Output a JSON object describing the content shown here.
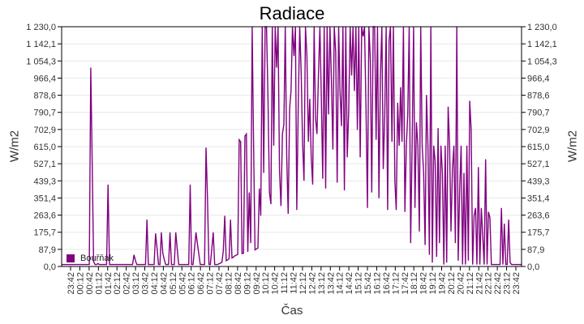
{
  "chart_data": {
    "type": "line",
    "title": "Radiace",
    "xlabel": "Čas",
    "ylabel": "W/m2",
    "ylabel_right": "W/m2",
    "ylim": [
      0,
      1230.0
    ],
    "y_ticks": [
      "0,0",
      "87,9",
      "175,7",
      "263,6",
      "351,4",
      "439,3",
      "527,1",
      "615,0",
      "702,9",
      "790,7",
      "878,6",
      "966,4",
      "1 054,3",
      "1 142,1",
      "1 230,0"
    ],
    "x_ticks": [
      "23:42",
      "00:12",
      "00:42",
      "01:12",
      "01:42",
      "02:12",
      "02:42",
      "03:12",
      "03:42",
      "04:12",
      "04:42",
      "05:12",
      "05:42",
      "06:12",
      "06:42",
      "07:12",
      "07:42",
      "08:12",
      "08:42",
      "09:12",
      "09:42",
      "10:12",
      "10:42",
      "11:12",
      "11:42",
      "12:12",
      "12:42",
      "13:12",
      "13:42",
      "14:12",
      "14:42",
      "15:12",
      "15:42",
      "16:12",
      "16:42",
      "17:12",
      "17:42",
      "18:12",
      "18:42",
      "19:12",
      "19:42",
      "20:12",
      "20:42",
      "21:12",
      "21:42",
      "22:12",
      "22:42",
      "23:12",
      "23:42"
    ],
    "grid": true,
    "legend_position": "bottom-left inside",
    "series": [
      {
        "name": "Bouřňák",
        "color": "#800080",
        "baseline_description": "Baseline ~10 W/m2 overnight, smooth clear-sky envelope rising from ~07:00, peaking ~439 W/m2 near 12:42, falling to ~10 by ~20:30; dense spikes above envelope up to 1230 (clipped) between 08:00 and 20:00, sporadic spikes at night (e.g. ~1020 at 01:42).",
        "sample_interval_min": 10,
        "start": "23:42",
        "values": [
          10,
          10,
          10,
          10,
          10,
          10,
          10,
          10,
          10,
          10,
          10,
          10,
          10,
          10,
          1020,
          520,
          25,
          10,
          10,
          15,
          10,
          10,
          10,
          10,
          10,
          10,
          420,
          10,
          10,
          10,
          10,
          10,
          10,
          10,
          10,
          10,
          10,
          10,
          10,
          10,
          10,
          10,
          10,
          10,
          60,
          30,
          10,
          10,
          10,
          10,
          10,
          10,
          10,
          240,
          10,
          10,
          10,
          10,
          10,
          170,
          95,
          10,
          10,
          175,
          70,
          35,
          10,
          10,
          10,
          175,
          10,
          10,
          10,
          175,
          90,
          10,
          10,
          10,
          10,
          10,
          10,
          10,
          10,
          420,
          10,
          10,
          90,
          175,
          120,
          65,
          10,
          10,
          10,
          10,
          610,
          350,
          10,
          10,
          90,
          175,
          10,
          10,
          10,
          14,
          18,
          22,
          80,
          260,
          30,
          34,
          40,
          240,
          44,
          48,
          55,
          58,
          62,
          650,
          640,
          66,
          68,
          670,
          680,
          75,
          380,
          120,
          1230,
          640,
          85,
          90,
          95,
          400,
          260,
          1230,
          480,
          1230,
          1230,
          860,
          380,
          320,
          1230,
          620,
          1230,
          1020,
          1230,
          490,
          310,
          680,
          730,
          1230,
          560,
          270,
          810,
          900,
          1230,
          1080,
          1230,
          290,
          820,
          1230,
          1000,
          640,
          440,
          1230,
          1080,
          640,
          860,
          560,
          420,
          1230,
          760,
          680,
          980,
          1230,
          880,
          450,
          1230,
          400,
          1230,
          780,
          1230,
          960,
          600,
          1230,
          1100,
          430,
          1230,
          900,
          720,
          1230,
          390,
          1230,
          560,
          800,
          1230,
          980,
          1230,
          900,
          1230,
          700,
          1230,
          560,
          1230,
          1180,
          1230,
          820,
          300,
          1230,
          1060,
          380,
          1230,
          1230,
          650,
          1230,
          350,
          980,
          1230,
          500,
          770,
          1230,
          290,
          1160,
          1230,
          640,
          1230,
          440,
          290,
          840,
          620,
          920,
          640,
          1230,
          280,
          620,
          780,
          1230,
          120,
          620,
          1230,
          300,
          740,
          620,
          180,
          1230,
          620,
          480,
          110,
          880,
          620,
          60,
          1230,
          20,
          620,
          540,
          50,
          710,
          120,
          620,
          480,
          10,
          620,
          20,
          820,
          620,
          180,
          500,
          620,
          120,
          1230,
          30,
          390,
          620,
          10,
          480,
          10,
          620,
          30,
          850,
          700,
          10,
          260,
          300,
          10,
          510,
          10,
          300,
          160,
          10,
          550,
          10,
          280,
          250,
          10,
          10,
          10,
          10,
          10,
          10,
          10,
          300,
          10,
          220,
          10,
          10,
          240,
          20,
          10,
          10,
          10,
          10
        ]
      }
    ]
  },
  "legend": {
    "label": "Bouřňák",
    "color": "#800080"
  }
}
